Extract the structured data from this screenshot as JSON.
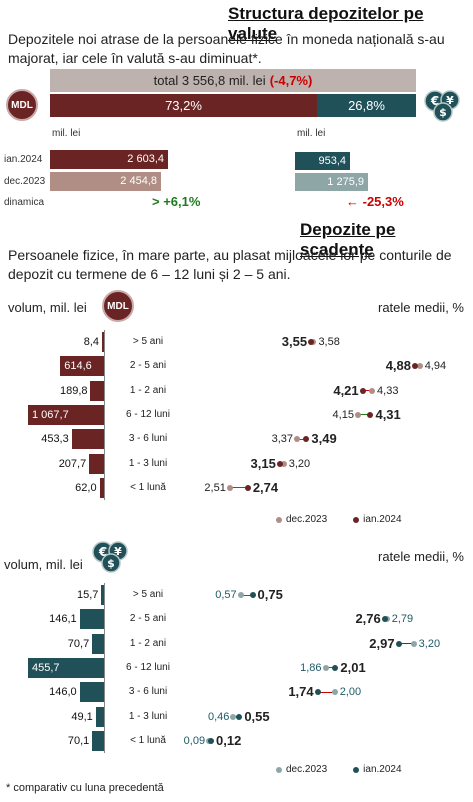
{
  "colors": {
    "mdl_dark": "#6b2424",
    "mdl_light": "#b08e86",
    "fx_dark": "#205058",
    "fx_light": "#8fa6a6",
    "grey_total": "#bdb2ae",
    "red": "#cc0000",
    "green": "#1f7a1f"
  },
  "section1": {
    "title": "Structura depozitelor pe valute",
    "text": "Depozitele noi atrase de la persoanele fizice în moneda națională s-au majorat, iar cele în valută s-au diminuat*.",
    "mdl_badge": "MDL",
    "total_label": "total 3 556,8 mil. lei",
    "total_change": "(-4,7%)",
    "share_mdl": "73,2%",
    "share_fx": "26,8%",
    "unit_left": "mil. lei",
    "unit_right": "mil. lei",
    "row_labels": [
      "ian.2024",
      "dec.2023",
      "dinamica"
    ],
    "mdl_jan": "2 603,4",
    "mdl_dec": "2 454,8",
    "fx_jan": "953,4",
    "fx_dec": "1 275,9",
    "mdl_dyn": "+6,1%",
    "fx_dyn": "-25,3%"
  },
  "section2": {
    "title": "Depozite pe scadențe",
    "text": "Persoanele fizice, în mare parte, au plasat mijloacele lor pe conturile de depozit cu termene de 6 – 12 luni și 2 – 5 ani.",
    "vol_label": "volum, mil. lei",
    "rate_label": "ratele medii, %",
    "legend_dec": "dec.2023",
    "legend_jan": "ian.2024",
    "footnote": "* comparativ cu luna precedentă"
  },
  "chart_data": [
    {
      "type": "bar",
      "title": "Structura depozitelor pe valute",
      "categories": [
        "MDL",
        "valută"
      ],
      "series": [
        {
          "name": "ian.2024",
          "values": [
            2603.4,
            953.4
          ]
        },
        {
          "name": "dec.2023",
          "values": [
            2454.8,
            1275.9
          ]
        }
      ],
      "shares": [
        73.2,
        26.8
      ],
      "total": 3556.8,
      "total_change_pct": -4.7,
      "dynamics_pct": [
        6.1,
        -25.3
      ],
      "ylabel": "mil. lei"
    },
    {
      "type": "bar",
      "title": "MDL",
      "categories": [
        "> 5 ani",
        "2 - 5 ani",
        "1 - 2 ani",
        "6 - 12 luni",
        "3 - 6 luni",
        "1 - 3 luni",
        "< 1 lună"
      ],
      "volume": [
        8.4,
        614.6,
        189.8,
        1067.7,
        453.3,
        207.7,
        62.0
      ],
      "volume_labels": [
        "8,4",
        "614,6",
        "189,8",
        "1 067,7",
        "453,3",
        "207,7",
        "62,0"
      ],
      "series": [
        {
          "name": "dec.2023",
          "values": [
            3.58,
            4.94,
            4.33,
            4.15,
            3.37,
            3.2,
            2.51
          ]
        },
        {
          "name": "ian.2024",
          "values": [
            3.55,
            4.88,
            4.21,
            4.31,
            3.49,
            3.15,
            2.74
          ]
        }
      ],
      "dec_labels": [
        "3,58",
        "4,94",
        "4,33",
        "4,15",
        "3,37",
        "3,20",
        "2,51"
      ],
      "jan_labels": [
        "3,55",
        "4,88",
        "4,21",
        "4,31",
        "3,49",
        "3,15",
        "2,74"
      ],
      "xlabel": "volum, mil. lei",
      "ylabel": "ratele medii, %",
      "rate_range": [
        2.0,
        5.2
      ]
    },
    {
      "type": "bar",
      "title": "valută",
      "categories": [
        "> 5 ani",
        "2 - 5 ani",
        "1 - 2 ani",
        "6 - 12 luni",
        "3 - 6 luni",
        "1 - 3 luni",
        "< 1 lună"
      ],
      "volume": [
        15.7,
        146.1,
        70.7,
        455.7,
        146.0,
        49.1,
        70.1
      ],
      "volume_labels": [
        "15,7",
        "146,1",
        "70,7",
        "455,7",
        "146,0",
        "49,1",
        "70,1"
      ],
      "series": [
        {
          "name": "dec.2023",
          "values": [
            0.57,
            2.79,
            3.2,
            1.86,
            2.0,
            0.46,
            0.09
          ]
        },
        {
          "name": "ian.2024",
          "values": [
            0.75,
            2.76,
            2.97,
            2.01,
            1.74,
            0.55,
            0.12
          ]
        }
      ],
      "dec_labels": [
        "0,57",
        "2,79",
        "3,20",
        "1,86",
        "2,00",
        "0,46",
        "0,09"
      ],
      "jan_labels": [
        "0,75",
        "2,76",
        "2,97",
        "2,01",
        "1,74",
        "0,55",
        "0,12"
      ],
      "xlabel": "volum, mil. lei",
      "ylabel": "ratele medii, %",
      "rate_range": [
        -0.2,
        3.6
      ]
    }
  ]
}
